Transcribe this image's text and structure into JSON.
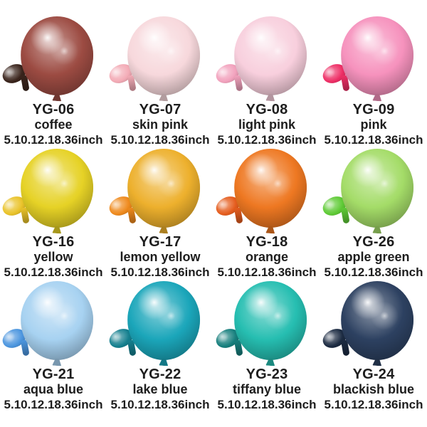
{
  "page": {
    "background": "#ffffff",
    "text_color": "#1d1d1d"
  },
  "products": [
    {
      "code": "YG-06",
      "name": "coffee",
      "sizes": "5.10.12.18.36inch",
      "color": "#9c4b42",
      "mini_color": "#3a241c"
    },
    {
      "code": "YG-07",
      "name": "skin pink",
      "sizes": "5.10.12.18.36inch",
      "color": "#f7d8dc",
      "mini_color": "#f3abb6"
    },
    {
      "code": "YG-08",
      "name": "light pink",
      "sizes": "5.10.12.18.36inch",
      "color": "#f8cfdd",
      "mini_color": "#f2a2bd"
    },
    {
      "code": "YG-09",
      "name": "pink",
      "sizes": "5.10.12.18.36inch",
      "color": "#f692bd",
      "mini_color": "#ee2f66"
    },
    {
      "code": "YG-16",
      "name": "yellow",
      "sizes": "5.10.12.18.36inch",
      "color": "#e6d226",
      "mini_color": "#eac32a"
    },
    {
      "code": "YG-17",
      "name": "lemon yellow",
      "sizes": "5.10.12.18.36inch",
      "color": "#edb02d",
      "mini_color": "#ef8a1d"
    },
    {
      "code": "YG-18",
      "name": "orange",
      "sizes": "5.10.12.18.36inch",
      "color": "#ee7822",
      "mini_color": "#e55d1e"
    },
    {
      "code": "YG-26",
      "name": "apple green",
      "sizes": "5.10.12.18.36inch",
      "color": "#a4dc68",
      "mini_color": "#5fcb36"
    },
    {
      "code": "YG-21",
      "name": "aqua blue",
      "sizes": "5.10.12.18.36inch",
      "color": "#a7d2f1",
      "mini_color": "#4c96df"
    },
    {
      "code": "YG-22",
      "name": "lake blue",
      "sizes": "5.10.12.18.36inch",
      "color": "#1ba6ba",
      "mini_color": "#15808f"
    },
    {
      "code": "YG-23",
      "name": "tiffany blue",
      "sizes": "5.10.12.18.36inch",
      "color": "#26beb1",
      "mini_color": "#177f7d"
    },
    {
      "code": "YG-24",
      "name": "blackish blue",
      "sizes": "5.10.12.18.36inch",
      "color": "#2d4161",
      "mini_color": "#1c2b42"
    }
  ]
}
